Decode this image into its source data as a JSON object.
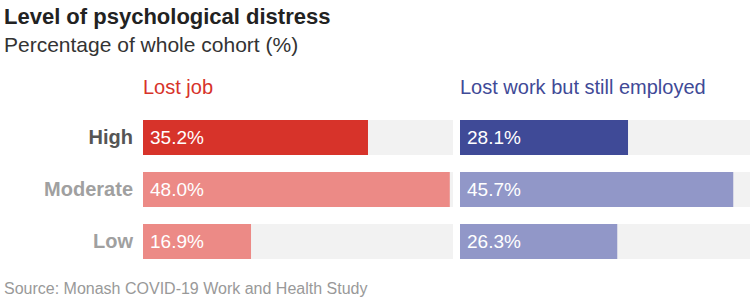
{
  "chart_data": {
    "type": "bar",
    "title": "Level of psychological distress",
    "subtitle": "Percentage of whole cohort (%)",
    "annotations": [
      "Source: Monash COVID-19 Work and Health Study"
    ],
    "orientation": "horizontal",
    "categories": [
      "High",
      "Moderate",
      "Low"
    ],
    "series": [
      {
        "name": "Lost job",
        "color": "#d7332a",
        "colors": [
          "#d7332a",
          "#ec8a86",
          "#ec8a86"
        ],
        "values": [
          35.2,
          48.0,
          16.9
        ],
        "value_labels": [
          "35.2%",
          "48.0%",
          "16.9%"
        ]
      },
      {
        "name": "Lost work but still employed",
        "color": "#3f4a97",
        "colors": [
          "#3f4a97",
          "#9197c8",
          "#9197c8"
        ],
        "values": [
          28.1,
          45.7,
          26.3
        ],
        "value_labels": [
          "28.1%",
          "45.7%",
          "26.3%"
        ]
      }
    ],
    "xlim": [
      0,
      48.5
    ],
    "data_labels": true,
    "tick_labels": "y",
    "grid": false
  }
}
